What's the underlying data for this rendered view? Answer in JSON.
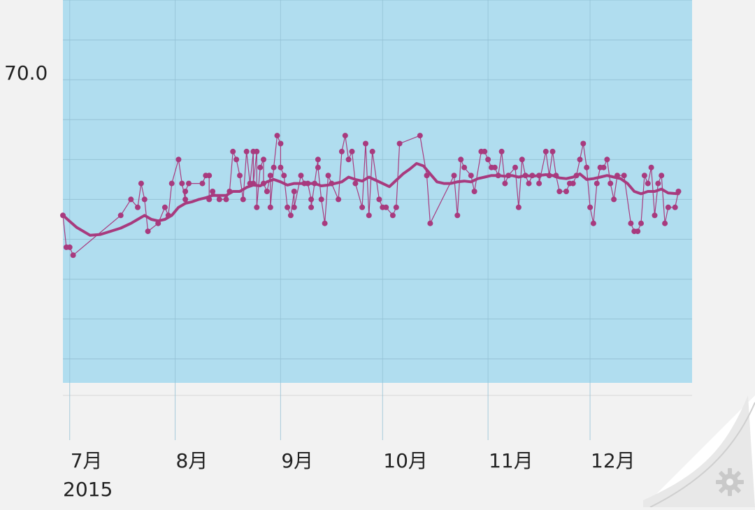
{
  "chart_data": {
    "type": "line",
    "title": "",
    "xlabel": "",
    "ylabel": "",
    "ylim": [
      66.2,
      71.0
    ],
    "xlim": [
      "2015-06-29",
      "2015-12-31"
    ],
    "grid": true,
    "y_ticks": [
      {
        "value": 70.0,
        "label": "70.0"
      }
    ],
    "x_ticks": [
      {
        "date": "2015-07-01",
        "label": "7月"
      },
      {
        "date": "2015-08-01",
        "label": "8月"
      },
      {
        "date": "2015-09-01",
        "label": "9月"
      },
      {
        "date": "2015-10-01",
        "label": "10月"
      },
      {
        "date": "2015-11-01",
        "label": "11月"
      },
      {
        "date": "2015-12-01",
        "label": "12月"
      }
    ],
    "year_label": "2015",
    "colors": {
      "plot_background": "#b0ddef",
      "series": "#a83a7e",
      "grid": "#95c2d6",
      "page_background": "#f2f2f2"
    },
    "series": [
      {
        "name": "",
        "style": "thin line with dots",
        "points": [
          [
            "2015-06-29",
            68.3
          ],
          [
            "2015-06-30",
            67.9
          ],
          [
            "2015-07-01",
            67.9
          ],
          [
            "2015-07-02",
            67.8
          ],
          [
            "2015-07-16",
            68.3
          ],
          [
            "2015-07-19",
            68.5
          ],
          [
            "2015-07-21",
            68.4
          ],
          [
            "2015-07-22",
            68.7
          ],
          [
            "2015-07-23",
            68.5
          ],
          [
            "2015-07-24",
            68.1
          ],
          [
            "2015-07-27",
            68.2
          ],
          [
            "2015-07-29",
            68.4
          ],
          [
            "2015-07-30",
            68.3
          ],
          [
            "2015-07-31",
            68.7
          ],
          [
            "2015-08-02",
            69.0
          ],
          [
            "2015-08-03",
            68.7
          ],
          [
            "2015-08-04",
            68.5
          ],
          [
            "2015-08-04",
            68.6
          ],
          [
            "2015-08-05",
            68.7
          ],
          [
            "2015-08-09",
            68.7
          ],
          [
            "2015-08-10",
            68.8
          ],
          [
            "2015-08-11",
            68.8
          ],
          [
            "2015-08-11",
            68.5
          ],
          [
            "2015-08-12",
            68.6
          ],
          [
            "2015-08-14",
            68.5
          ],
          [
            "2015-08-16",
            68.5
          ],
          [
            "2015-08-17",
            68.6
          ],
          [
            "2015-08-18",
            69.1
          ],
          [
            "2015-08-19",
            69.0
          ],
          [
            "2015-08-20",
            68.8
          ],
          [
            "2015-08-21",
            68.5
          ],
          [
            "2015-08-22",
            69.1
          ],
          [
            "2015-08-23",
            68.7
          ],
          [
            "2015-08-24",
            69.1
          ],
          [
            "2015-08-24",
            68.7
          ],
          [
            "2015-08-25",
            69.1
          ],
          [
            "2015-08-25",
            68.4
          ],
          [
            "2015-08-26",
            68.9
          ],
          [
            "2015-08-27",
            69.0
          ],
          [
            "2015-08-27",
            68.7
          ],
          [
            "2015-08-28",
            68.6
          ],
          [
            "2015-08-29",
            68.8
          ],
          [
            "2015-08-29",
            68.4
          ],
          [
            "2015-08-30",
            68.9
          ],
          [
            "2015-08-31",
            69.3
          ],
          [
            "2015-09-01",
            69.2
          ],
          [
            "2015-09-01",
            68.9
          ],
          [
            "2015-09-02",
            68.8
          ],
          [
            "2015-09-03",
            68.4
          ],
          [
            "2015-09-04",
            68.3
          ],
          [
            "2015-09-05",
            68.6
          ],
          [
            "2015-09-05",
            68.4
          ],
          [
            "2015-09-07",
            68.8
          ],
          [
            "2015-09-08",
            68.7
          ],
          [
            "2015-09-09",
            68.7
          ],
          [
            "2015-09-10",
            68.5
          ],
          [
            "2015-09-10",
            68.4
          ],
          [
            "2015-09-11",
            68.7
          ],
          [
            "2015-09-12",
            69.0
          ],
          [
            "2015-09-12",
            68.9
          ],
          [
            "2015-09-13",
            68.5
          ],
          [
            "2015-09-14",
            68.2
          ],
          [
            "2015-09-15",
            68.8
          ],
          [
            "2015-09-16",
            68.7
          ],
          [
            "2015-09-18",
            68.5
          ],
          [
            "2015-09-19",
            69.1
          ],
          [
            "2015-09-20",
            69.3
          ],
          [
            "2015-09-21",
            69.0
          ],
          [
            "2015-09-22",
            69.1
          ],
          [
            "2015-09-23",
            68.7
          ],
          [
            "2015-09-25",
            68.4
          ],
          [
            "2015-09-26",
            69.2
          ],
          [
            "2015-09-27",
            68.3
          ],
          [
            "2015-09-28",
            69.1
          ],
          [
            "2015-09-30",
            68.5
          ],
          [
            "2015-10-01",
            68.4
          ],
          [
            "2015-10-02",
            68.4
          ],
          [
            "2015-10-04",
            68.3
          ],
          [
            "2015-10-05",
            68.4
          ],
          [
            "2015-10-06",
            69.2
          ],
          [
            "2015-10-12",
            69.3
          ],
          [
            "2015-10-14",
            68.8
          ],
          [
            "2015-10-15",
            68.2
          ],
          [
            "2015-10-22",
            68.8
          ],
          [
            "2015-10-23",
            68.3
          ],
          [
            "2015-10-24",
            69.0
          ],
          [
            "2015-10-25",
            68.9
          ],
          [
            "2015-10-27",
            68.8
          ],
          [
            "2015-10-28",
            68.6
          ],
          [
            "2015-10-30",
            69.1
          ],
          [
            "2015-10-31",
            69.1
          ],
          [
            "2015-11-01",
            69.0
          ],
          [
            "2015-11-02",
            68.9
          ],
          [
            "2015-11-03",
            68.9
          ],
          [
            "2015-11-04",
            68.8
          ],
          [
            "2015-11-05",
            69.1
          ],
          [
            "2015-11-06",
            68.7
          ],
          [
            "2015-11-07",
            68.8
          ],
          [
            "2015-11-09",
            68.9
          ],
          [
            "2015-11-10",
            68.4
          ],
          [
            "2015-11-11",
            69.0
          ],
          [
            "2015-11-12",
            68.8
          ],
          [
            "2015-11-13",
            68.7
          ],
          [
            "2015-11-14",
            68.8
          ],
          [
            "2015-11-16",
            68.8
          ],
          [
            "2015-11-16",
            68.7
          ],
          [
            "2015-11-18",
            69.1
          ],
          [
            "2015-11-19",
            68.8
          ],
          [
            "2015-11-20",
            69.1
          ],
          [
            "2015-11-21",
            68.8
          ],
          [
            "2015-11-22",
            68.6
          ],
          [
            "2015-11-24",
            68.6
          ],
          [
            "2015-11-25",
            68.7
          ],
          [
            "2015-11-26",
            68.7
          ],
          [
            "2015-11-27",
            68.8
          ],
          [
            "2015-11-28",
            69.0
          ],
          [
            "2015-11-29",
            69.2
          ],
          [
            "2015-11-30",
            68.9
          ],
          [
            "2015-12-01",
            68.4
          ],
          [
            "2015-12-02",
            68.2
          ],
          [
            "2015-12-03",
            68.7
          ],
          [
            "2015-12-04",
            68.9
          ],
          [
            "2015-12-05",
            68.9
          ],
          [
            "2015-12-06",
            69.0
          ],
          [
            "2015-12-07",
            68.7
          ],
          [
            "2015-12-08",
            68.5
          ],
          [
            "2015-12-09",
            68.8
          ],
          [
            "2015-12-11",
            68.8
          ],
          [
            "2015-12-13",
            68.2
          ],
          [
            "2015-12-14",
            68.1
          ],
          [
            "2015-12-15",
            68.1
          ],
          [
            "2015-12-16",
            68.2
          ],
          [
            "2015-12-17",
            68.8
          ],
          [
            "2015-12-18",
            68.7
          ],
          [
            "2015-12-19",
            68.9
          ],
          [
            "2015-12-20",
            68.3
          ],
          [
            "2015-12-21",
            68.7
          ],
          [
            "2015-12-22",
            68.8
          ],
          [
            "2015-12-23",
            68.2
          ],
          [
            "2015-12-24",
            68.4
          ],
          [
            "2015-12-26",
            68.4
          ],
          [
            "2015-12-27",
            68.6
          ]
        ]
      },
      {
        "name": "",
        "style": "thick smoothed line",
        "points": [
          [
            "2015-06-29",
            68.3
          ],
          [
            "2015-07-03",
            68.15
          ],
          [
            "2015-07-07",
            68.05
          ],
          [
            "2015-07-10",
            68.06
          ],
          [
            "2015-07-13",
            68.1
          ],
          [
            "2015-07-16",
            68.14
          ],
          [
            "2015-07-19",
            68.2
          ],
          [
            "2015-07-21",
            68.25
          ],
          [
            "2015-07-23",
            68.3
          ],
          [
            "2015-07-25",
            68.25
          ],
          [
            "2015-07-27",
            68.23
          ],
          [
            "2015-07-29",
            68.25
          ],
          [
            "2015-07-31",
            68.3
          ],
          [
            "2015-08-02",
            68.4
          ],
          [
            "2015-08-04",
            68.45
          ],
          [
            "2015-08-06",
            68.47
          ],
          [
            "2015-08-08",
            68.5
          ],
          [
            "2015-08-10",
            68.52
          ],
          [
            "2015-08-12",
            68.55
          ],
          [
            "2015-08-14",
            68.55
          ],
          [
            "2015-08-16",
            68.55
          ],
          [
            "2015-08-18",
            68.6
          ],
          [
            "2015-08-20",
            68.6
          ],
          [
            "2015-08-22",
            68.65
          ],
          [
            "2015-08-24",
            68.68
          ],
          [
            "2015-08-26",
            68.67
          ],
          [
            "2015-08-28",
            68.72
          ],
          [
            "2015-08-30",
            68.75
          ],
          [
            "2015-09-01",
            68.72
          ],
          [
            "2015-09-03",
            68.68
          ],
          [
            "2015-09-05",
            68.7
          ],
          [
            "2015-09-07",
            68.7
          ],
          [
            "2015-09-09",
            68.7
          ],
          [
            "2015-09-11",
            68.7
          ],
          [
            "2015-09-13",
            68.67
          ],
          [
            "2015-09-15",
            68.68
          ],
          [
            "2015-09-17",
            68.7
          ],
          [
            "2015-09-19",
            68.72
          ],
          [
            "2015-09-21",
            68.78
          ],
          [
            "2015-09-23",
            68.75
          ],
          [
            "2015-09-25",
            68.73
          ],
          [
            "2015-09-27",
            68.78
          ],
          [
            "2015-09-29",
            68.74
          ],
          [
            "2015-10-01",
            68.7
          ],
          [
            "2015-10-03",
            68.66
          ],
          [
            "2015-10-05",
            68.74
          ],
          [
            "2015-10-07",
            68.82
          ],
          [
            "2015-10-09",
            68.88
          ],
          [
            "2015-10-11",
            68.95
          ],
          [
            "2015-10-13",
            68.92
          ],
          [
            "2015-10-15",
            68.82
          ],
          [
            "2015-10-17",
            68.72
          ],
          [
            "2015-10-19",
            68.7
          ],
          [
            "2015-10-21",
            68.7
          ],
          [
            "2015-10-23",
            68.72
          ],
          [
            "2015-10-25",
            68.73
          ],
          [
            "2015-10-27",
            68.72
          ],
          [
            "2015-10-29",
            68.76
          ],
          [
            "2015-10-31",
            68.78
          ],
          [
            "2015-11-02",
            68.8
          ],
          [
            "2015-11-04",
            68.8
          ],
          [
            "2015-11-06",
            68.79
          ],
          [
            "2015-11-08",
            68.8
          ],
          [
            "2015-11-10",
            68.78
          ],
          [
            "2015-11-12",
            68.8
          ],
          [
            "2015-11-14",
            68.79
          ],
          [
            "2015-11-16",
            68.8
          ],
          [
            "2015-11-18",
            68.81
          ],
          [
            "2015-11-20",
            68.8
          ],
          [
            "2015-11-22",
            68.77
          ],
          [
            "2015-11-24",
            68.76
          ],
          [
            "2015-11-26",
            68.78
          ],
          [
            "2015-11-28",
            68.82
          ],
          [
            "2015-11-30",
            68.75
          ],
          [
            "2015-12-02",
            68.76
          ],
          [
            "2015-12-04",
            68.78
          ],
          [
            "2015-12-06",
            68.8
          ],
          [
            "2015-12-08",
            68.78
          ],
          [
            "2015-12-10",
            68.76
          ],
          [
            "2015-12-12",
            68.7
          ],
          [
            "2015-12-14",
            68.6
          ],
          [
            "2015-12-16",
            68.57
          ],
          [
            "2015-12-18",
            68.6
          ],
          [
            "2015-12-20",
            68.6
          ],
          [
            "2015-12-22",
            68.63
          ],
          [
            "2015-12-24",
            68.58
          ],
          [
            "2015-12-27",
            68.57
          ]
        ]
      }
    ]
  }
}
